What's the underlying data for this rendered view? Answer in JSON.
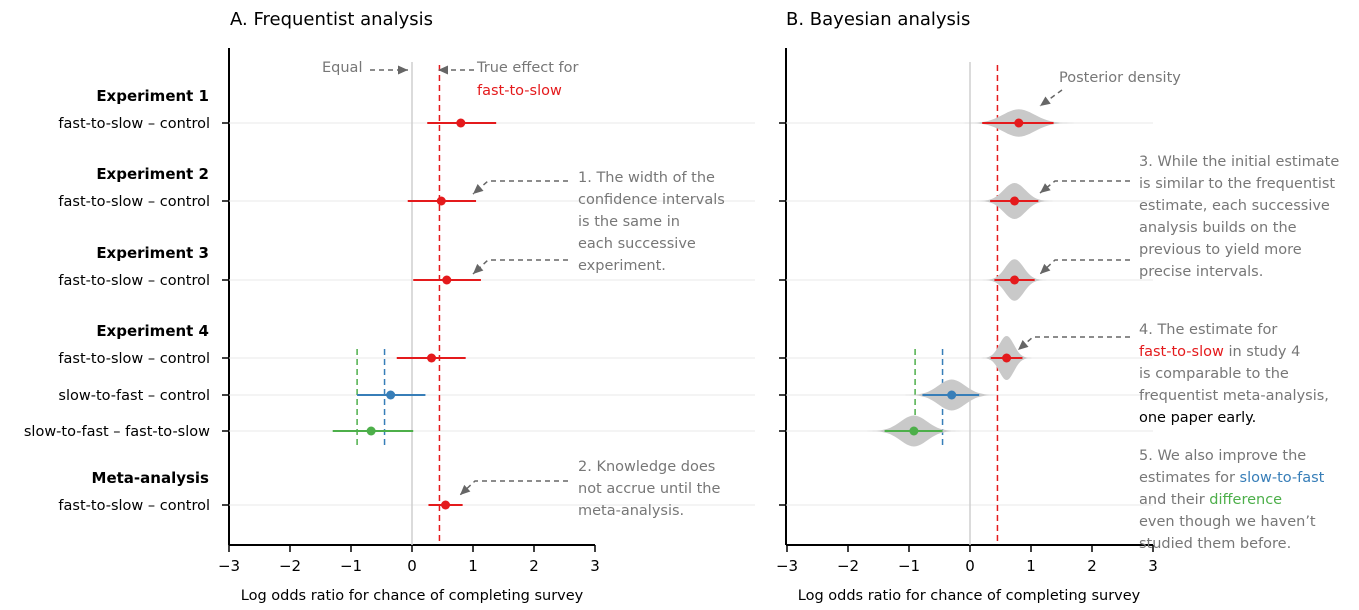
{
  "chart_data": [
    {
      "panel": "frequentist",
      "type": "scatter",
      "title": "A. Frequentist analysis",
      "xlabel": "Log odds ratio for chance of completing survey",
      "xlim": [
        -3,
        3
      ],
      "xticks": [
        "−3",
        "−2",
        "−1",
        "0",
        "1",
        "2",
        "3"
      ],
      "groups": [
        {
          "label": "Experiment 1",
          "rows": [
            {
              "label": "fast-to-slow – control",
              "series": "fast-to-slow",
              "estimate": 0.8,
              "lower": 0.25,
              "upper": 1.38
            }
          ]
        },
        {
          "label": "Experiment 2",
          "rows": [
            {
              "label": "fast-to-slow – control",
              "series": "fast-to-slow",
              "estimate": 0.48,
              "lower": -0.07,
              "upper": 1.05
            }
          ]
        },
        {
          "label": "Experiment 3",
          "rows": [
            {
              "label": "fast-to-slow – control",
              "series": "fast-to-slow",
              "estimate": 0.57,
              "lower": 0.02,
              "upper": 1.13
            }
          ]
        },
        {
          "label": "Experiment 4",
          "rows": [
            {
              "label": "fast-to-slow – control",
              "series": "fast-to-slow",
              "estimate": 0.32,
              "lower": -0.25,
              "upper": 0.88
            },
            {
              "label": "slow-to-fast – control",
              "series": "slow-to-fast",
              "estimate": -0.35,
              "lower": -0.9,
              "upper": 0.22
            },
            {
              "label": "slow-to-fast – fast-to-slow",
              "series": "difference",
              "estimate": -0.67,
              "lower": -1.3,
              "upper": 0.02
            }
          ]
        },
        {
          "label": "Meta-analysis",
          "rows": [
            {
              "label": "fast-to-slow – control",
              "series": "fast-to-slow",
              "estimate": 0.55,
              "lower": 0.27,
              "upper": 0.83
            }
          ]
        }
      ],
      "reference_lines": [
        {
          "x": 0,
          "kind": "equal"
        },
        {
          "x": 0.45,
          "kind": "true-effect",
          "series": "fast-to-slow"
        },
        {
          "x": -0.45,
          "kind": "true-effect",
          "series": "slow-to-fast"
        },
        {
          "x": -0.9,
          "kind": "true-effect",
          "series": "difference"
        }
      ],
      "annotations": [
        {
          "lines": [
            "Equal"
          ]
        },
        {
          "lines": [
            "True effect for"
          ],
          "highlight": "fast-to-slow"
        },
        {
          "lines": [
            "1. The width of the",
            "confidence intervals",
            "is the same in",
            "each successive",
            "experiment."
          ]
        },
        {
          "lines": [
            "2. Knowledge does",
            "not accrue until the",
            "meta-analysis."
          ]
        }
      ]
    },
    {
      "panel": "bayesian",
      "type": "scatter",
      "title": "B. Bayesian analysis",
      "xlabel": "Log odds ratio for chance of completing survey",
      "xlim": [
        -3,
        3
      ],
      "xticks": [
        "−3",
        "−2",
        "−1",
        "0",
        "1",
        "2",
        "3"
      ],
      "rows": [
        {
          "group": "Experiment 1",
          "series": "fast-to-slow",
          "estimate": 0.8,
          "lower": 0.2,
          "upper": 1.37,
          "density_sd": 0.26
        },
        {
          "group": "Experiment 2",
          "series": "fast-to-slow",
          "estimate": 0.73,
          "lower": 0.33,
          "upper": 1.12,
          "density_sd": 0.18
        },
        {
          "group": "Experiment 3",
          "series": "fast-to-slow",
          "estimate": 0.73,
          "lower": 0.4,
          "upper": 1.06,
          "density_sd": 0.15
        },
        {
          "group": "Experiment 4",
          "series": "fast-to-slow",
          "estimate": 0.6,
          "lower": 0.34,
          "upper": 0.86,
          "density_sd": 0.12
        },
        {
          "group": "Experiment 4",
          "series": "slow-to-fast",
          "estimate": -0.3,
          "lower": -0.78,
          "upper": 0.15,
          "density_sd": 0.22
        },
        {
          "group": "Experiment 4",
          "series": "difference",
          "estimate": -0.92,
          "lower": -1.4,
          "upper": -0.45,
          "density_sd": 0.22
        }
      ],
      "reference_lines": [
        {
          "x": 0,
          "kind": "equal"
        },
        {
          "x": 0.45,
          "kind": "true-effect",
          "series": "fast-to-slow"
        },
        {
          "x": -0.45,
          "kind": "true-effect",
          "series": "slow-to-fast"
        },
        {
          "x": -0.9,
          "kind": "true-effect",
          "series": "difference"
        }
      ],
      "annotations": [
        {
          "lines": [
            "Posterior density"
          ]
        },
        {
          "lines": [
            "3. While the initial estimate",
            "is similar to the frequentist",
            "estimate, each successive",
            "analysis builds on the",
            "previous to yield more",
            "precise intervals."
          ]
        },
        {
          "segments": [
            [
              {
                "t": "4. The estimate for"
              }
            ],
            [
              {
                "t": "fast-to-slow",
                "c": "red"
              },
              {
                "t": " in study 4"
              }
            ],
            [
              {
                "t": "is comparable to the"
              }
            ],
            [
              {
                "t": "frequentist meta-analysis,"
              }
            ],
            [
              {
                "t": "one paper early.",
                "c": "black"
              }
            ]
          ]
        },
        {
          "segments": [
            [
              {
                "t": "5. We also improve the"
              }
            ],
            [
              {
                "t": "estimates for "
              },
              {
                "t": "slow-to-fast",
                "c": "blue"
              }
            ],
            [
              {
                "t": "and their "
              },
              {
                "t": "difference",
                "c": "green"
              }
            ],
            [
              {
                "t": "even though we haven’t"
              }
            ],
            [
              {
                "t": "studied them before."
              }
            ]
          ]
        }
      ]
    }
  ],
  "colors": {
    "fast-to-slow": "#e41a1c",
    "slow-to-fast": "#377eb8",
    "difference": "#4daf4a",
    "zero_line": "#cfcfcf",
    "row_line": "#e8e8e8",
    "annotation_text": "#777777",
    "arrow": "#666666",
    "density_fill": "#c9c9c9"
  }
}
